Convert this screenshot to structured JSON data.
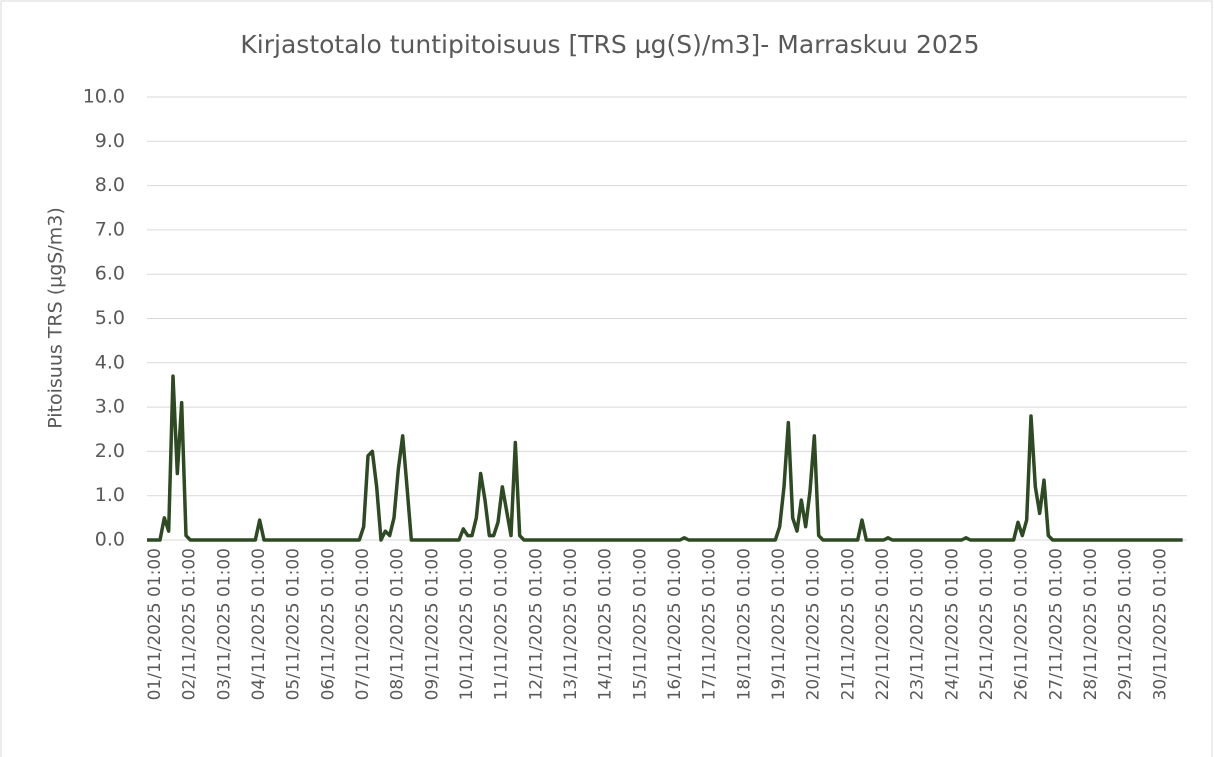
{
  "chart_data": {
    "type": "line",
    "title": "Kirjastotalo tuntipitoisuus [TRS µg(S)/m3]- Marraskuu 2025",
    "y_label": "Pitoisuus TRS (µgS/m3)",
    "ylim": [
      0,
      10
    ],
    "yticks": [
      {
        "value": 0,
        "label": "0.0"
      },
      {
        "value": 1,
        "label": "1.0"
      },
      {
        "value": 2,
        "label": "2.0"
      },
      {
        "value": 3,
        "label": "3.0"
      },
      {
        "value": 4,
        "label": "4.0"
      },
      {
        "value": 5,
        "label": "5.0"
      },
      {
        "value": 6,
        "label": "6.0"
      },
      {
        "value": 7,
        "label": "7.0"
      },
      {
        "value": 8,
        "label": "8.0"
      },
      {
        "value": 9,
        "label": "9.0"
      },
      {
        "value": 10,
        "label": "10.0"
      }
    ],
    "grid": true,
    "categories": [
      "01/11/2025 01:00",
      null,
      null,
      null,
      null,
      null,
      null,
      null,
      "02/11/2025 01:00",
      null,
      null,
      null,
      null,
      null,
      null,
      null,
      "03/11/2025 01:00",
      null,
      null,
      null,
      null,
      null,
      null,
      null,
      "04/11/2025 01:00",
      null,
      null,
      null,
      null,
      null,
      null,
      null,
      "05/11/2025 01:00",
      null,
      null,
      null,
      null,
      null,
      null,
      null,
      "06/11/2025 01:00",
      null,
      null,
      null,
      null,
      null,
      null,
      null,
      "07/11/2025 01:00",
      null,
      null,
      null,
      null,
      null,
      null,
      null,
      "08/11/2025 01:00",
      null,
      null,
      null,
      null,
      null,
      null,
      null,
      "09/11/2025 01:00",
      null,
      null,
      null,
      null,
      null,
      null,
      null,
      "10/11/2025 01:00",
      null,
      null,
      null,
      null,
      null,
      null,
      null,
      "11/11/2025 01:00",
      null,
      null,
      null,
      null,
      null,
      null,
      null,
      "12/11/2025 01:00",
      null,
      null,
      null,
      null,
      null,
      null,
      null,
      "13/11/2025 01:00",
      null,
      null,
      null,
      null,
      null,
      null,
      null,
      "14/11/2025 01:00",
      null,
      null,
      null,
      null,
      null,
      null,
      null,
      "15/11/2025 01:00",
      null,
      null,
      null,
      null,
      null,
      null,
      null,
      "16/11/2025 01:00",
      null,
      null,
      null,
      null,
      null,
      null,
      null,
      "17/11/2025 01:00",
      null,
      null,
      null,
      null,
      null,
      null,
      null,
      "18/11/2025 01:00",
      null,
      null,
      null,
      null,
      null,
      null,
      null,
      "19/11/2025 01:00",
      null,
      null,
      null,
      null,
      null,
      null,
      null,
      "20/11/2025 01:00",
      null,
      null,
      null,
      null,
      null,
      null,
      null,
      "21/11/2025 01:00",
      null,
      null,
      null,
      null,
      null,
      null,
      null,
      "22/11/2025 01:00",
      null,
      null,
      null,
      null,
      null,
      null,
      null,
      "23/11/2025 01:00",
      null,
      null,
      null,
      null,
      null,
      null,
      null,
      "24/11/2025 01:00",
      null,
      null,
      null,
      null,
      null,
      null,
      null,
      "25/11/2025 01:00",
      null,
      null,
      null,
      null,
      null,
      null,
      null,
      "26/11/2025 01:00",
      null,
      null,
      null,
      null,
      null,
      null,
      null,
      "27/11/2025 01:00",
      null,
      null,
      null,
      null,
      null,
      null,
      null,
      "28/11/2025 01:00",
      null,
      null,
      null,
      null,
      null,
      null,
      null,
      "29/11/2025 01:00",
      null,
      null,
      null,
      null,
      null,
      null,
      null,
      "30/11/2025 01:00",
      null,
      null,
      null,
      null,
      null,
      null,
      null
    ],
    "series": [
      {
        "name": "TRS",
        "color": "#2d4a22",
        "values": [
          0,
          0,
          0,
          0,
          0.5,
          0.2,
          3.7,
          1.5,
          3.1,
          0.1,
          0,
          0,
          0,
          0,
          0,
          0,
          0,
          0,
          0,
          0,
          0,
          0,
          0,
          0,
          0,
          0,
          0.45,
          0,
          0,
          0,
          0,
          0,
          0,
          0,
          0,
          0,
          0,
          0,
          0,
          0,
          0,
          0,
          0,
          0,
          0,
          0,
          0,
          0,
          0,
          0,
          0.3,
          1.9,
          2.0,
          1.2,
          0,
          0.2,
          0.1,
          0.5,
          1.6,
          2.35,
          1.2,
          0,
          0,
          0,
          0,
          0,
          0,
          0,
          0,
          0,
          0,
          0,
          0,
          0.25,
          0.1,
          0.1,
          0.5,
          1.5,
          0.9,
          0.1,
          0.1,
          0.4,
          1.2,
          0.65,
          0.1,
          2.2,
          0.1,
          0,
          0,
          0,
          0,
          0,
          0,
          0,
          0,
          0,
          0,
          0,
          0,
          0,
          0,
          0,
          0,
          0,
          0,
          0,
          0,
          0,
          0,
          0,
          0,
          0,
          0,
          0,
          0,
          0,
          0,
          0,
          0,
          0,
          0,
          0,
          0,
          0,
          0.05,
          0,
          0,
          0,
          0,
          0,
          0,
          0,
          0,
          0,
          0,
          0,
          0,
          0,
          0,
          0,
          0,
          0,
          0,
          0,
          0,
          0,
          0.3,
          1.2,
          2.65,
          0.5,
          0.2,
          0.9,
          0.3,
          1.1,
          2.35,
          0.1,
          0,
          0,
          0,
          0,
          0,
          0,
          0,
          0,
          0,
          0.45,
          0,
          0,
          0,
          0,
          0,
          0.05,
          0,
          0,
          0,
          0,
          0,
          0,
          0,
          0,
          0,
          0,
          0,
          0,
          0,
          0,
          0,
          0,
          0,
          0.05,
          0,
          0,
          0,
          0,
          0,
          0,
          0,
          0,
          0,
          0,
          0,
          0.4,
          0.1,
          0.45,
          2.8,
          1.2,
          0.6,
          1.35,
          0.1,
          0,
          0,
          0,
          0,
          0,
          0,
          0,
          0,
          0,
          0,
          0,
          0,
          0,
          0,
          0,
          0,
          0,
          0,
          0,
          0,
          0,
          0,
          0,
          0,
          0,
          0,
          0,
          0,
          0,
          0,
          0
        ]
      }
    ]
  }
}
